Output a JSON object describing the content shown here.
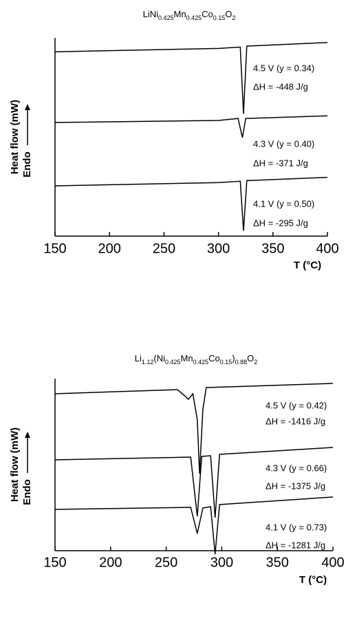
{
  "chart_data": [
    {
      "type": "line",
      "title": [
        {
          "text": "LiNi"
        },
        {
          "text": "0.425",
          "sub": true
        },
        {
          "text": "Mn"
        },
        {
          "text": "0.425",
          "sub": true
        },
        {
          "text": "Co"
        },
        {
          "text": "0.15",
          "sub": true
        },
        {
          "text": "O"
        },
        {
          "text": "2",
          "sub": true
        }
      ],
      "x_label": "T (°C)",
      "y_label": "Heat flow (mW)",
      "y_label_2": "Endo",
      "xlim": [
        150,
        400
      ],
      "xticks": [
        150,
        200,
        250,
        300,
        350,
        400
      ],
      "ylim": [
        0,
        30
      ],
      "color": "#000000",
      "series": [
        {
          "label": "4.5 V  (y = 0.34)",
          "annotation": "ΔH = -448 J/g",
          "x": [
            150,
            300,
            320,
            323,
            326,
            400
          ],
          "values": [
            27.9,
            28.4,
            28.6,
            18.5,
            28.75,
            29.3
          ]
        },
        {
          "label": "4.3 V  (y = 0.40)",
          "annotation": "ΔH = -371 J/g",
          "x": [
            150,
            300,
            318,
            322,
            325,
            400
          ],
          "values": [
            17.2,
            17.5,
            17.8,
            14.9,
            17.8,
            18.2
          ]
        },
        {
          "label": "4.1 V  (y = 0.50)",
          "annotation": "ΔH = -295 J/g",
          "x": [
            150,
            300,
            320,
            323,
            326,
            400
          ],
          "values": [
            7.6,
            8.1,
            8.3,
            0.8,
            8.4,
            8.9
          ]
        }
      ]
    },
    {
      "type": "line",
      "title": [
        {
          "text": "Li"
        },
        {
          "text": "1.12",
          "sub": true
        },
        {
          "text": "(Ni"
        },
        {
          "text": "0.425",
          "sub": true
        },
        {
          "text": "Mn"
        },
        {
          "text": "0.425",
          "sub": true
        },
        {
          "text": "Co"
        },
        {
          "text": "0.15",
          "sub": true
        },
        {
          "text": ")"
        },
        {
          "text": "0.88",
          "sub": true
        },
        {
          "text": "O"
        },
        {
          "text": "2",
          "sub": true
        }
      ],
      "x_label": "T (°C)",
      "y_label": "Heat flow (mW)",
      "y_label_2": "Endo",
      "xlim": [
        150,
        400
      ],
      "xticks": [
        150,
        200,
        250,
        300,
        350,
        400
      ],
      "ylim": [
        0,
        25
      ],
      "color": "#000000",
      "series": [
        {
          "label": "4.5 V  (y = 0.42)",
          "annotation": "ΔH = -1416 J/g",
          "x": [
            150,
            260,
            266,
            270,
            274,
            278,
            280,
            283,
            286,
            400
          ],
          "values": [
            22.8,
            23.4,
            22.6,
            22.0,
            22.8,
            19.0,
            11.2,
            20.5,
            23.7,
            24.3
          ]
        },
        {
          "label": "4.3 V  (y = 0.66)",
          "annotation": "ΔH = -1375 J/g",
          "x": [
            150,
            272,
            278,
            282,
            290,
            294,
            298,
            400
          ],
          "values": [
            13.2,
            13.6,
            5.0,
            13.7,
            13.8,
            4.8,
            14.0,
            15.0
          ]
        },
        {
          "label": "4.1 V  (y = 0.73)",
          "annotation": "ΔH = -1281 J/g",
          "x": [
            150,
            272,
            278,
            283,
            290,
            294,
            298,
            400
          ],
          "values": [
            6.0,
            6.3,
            2.5,
            6.2,
            6.4,
            -0.5,
            6.7,
            7.8
          ]
        }
      ]
    }
  ]
}
